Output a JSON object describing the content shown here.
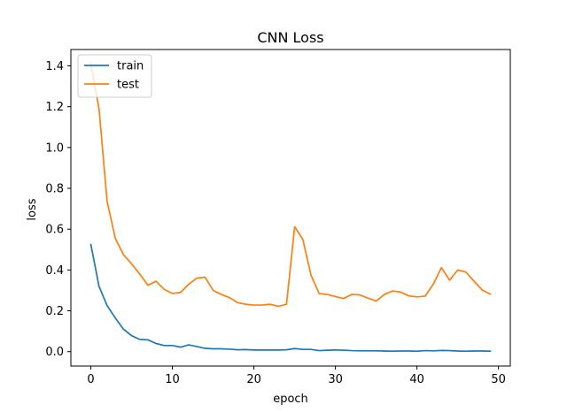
{
  "chart_data": {
    "type": "line",
    "title": "CNN Loss",
    "xlabel": "epoch",
    "ylabel": "loss",
    "xlim": [
      -2.45,
      51.45
    ],
    "ylim": [
      -0.0705,
      1.48
    ],
    "xticks": [
      0,
      10,
      20,
      30,
      40,
      50
    ],
    "yticks": [
      0.0,
      0.2,
      0.4,
      0.6,
      0.8,
      1.0,
      1.2,
      1.4
    ],
    "ytick_labels": [
      "0.0",
      "0.2",
      "0.4",
      "0.6",
      "0.8",
      "1.0",
      "1.2",
      "1.4"
    ],
    "grid": false,
    "legend_position": "upper left",
    "x": [
      0,
      1,
      2,
      3,
      4,
      5,
      6,
      7,
      8,
      9,
      10,
      11,
      12,
      13,
      14,
      15,
      16,
      17,
      18,
      19,
      20,
      21,
      22,
      23,
      24,
      25,
      26,
      27,
      28,
      29,
      30,
      31,
      32,
      33,
      34,
      35,
      36,
      37,
      38,
      39,
      40,
      41,
      42,
      43,
      44,
      45,
      46,
      47,
      48,
      49
    ],
    "series": [
      {
        "name": "train",
        "color": "#1f77b4",
        "values": [
          0.525,
          0.32,
          0.225,
          0.165,
          0.11,
          0.078,
          0.06,
          0.058,
          0.04,
          0.03,
          0.03,
          0.022,
          0.033,
          0.025,
          0.016,
          0.014,
          0.014,
          0.012,
          0.009,
          0.01,
          0.008,
          0.008,
          0.008,
          0.008,
          0.009,
          0.015,
          0.011,
          0.011,
          0.005,
          0.007,
          0.008,
          0.007,
          0.005,
          0.004,
          0.004,
          0.004,
          0.003,
          0.002,
          0.003,
          0.003,
          0.002,
          0.005,
          0.004,
          0.006,
          0.005,
          0.003,
          0.002,
          0.003,
          0.003,
          0.002
        ]
      },
      {
        "name": "test",
        "color": "#ff7f0e",
        "values": [
          1.41,
          1.19,
          0.735,
          0.555,
          0.475,
          0.43,
          0.38,
          0.325,
          0.345,
          0.305,
          0.285,
          0.29,
          0.33,
          0.36,
          0.365,
          0.3,
          0.28,
          0.265,
          0.24,
          0.232,
          0.228,
          0.228,
          0.232,
          0.222,
          0.232,
          0.612,
          0.55,
          0.375,
          0.285,
          0.28,
          0.27,
          0.26,
          0.28,
          0.278,
          0.262,
          0.248,
          0.28,
          0.297,
          0.292,
          0.273,
          0.268,
          0.272,
          0.33,
          0.412,
          0.35,
          0.4,
          0.39,
          0.345,
          0.302,
          0.282
        ]
      }
    ]
  }
}
